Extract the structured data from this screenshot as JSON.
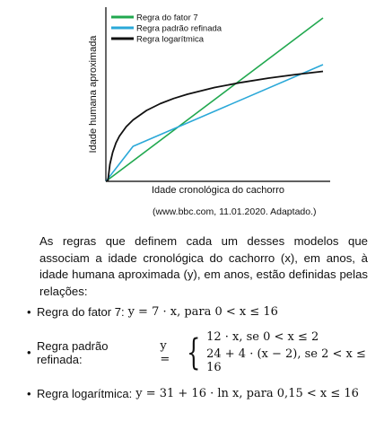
{
  "chart_data": {
    "type": "line",
    "title": "",
    "xlabel": "Idade cronológica do cachorro",
    "ylabel": "Idade humana aproximada",
    "xlim": [
      0,
      16
    ],
    "ylim": [
      0,
      112
    ],
    "grid": false,
    "legend_position": "top-left",
    "series": [
      {
        "name": "Regra do fator 7",
        "color": "#21a84f",
        "x": [
          0,
          16
        ],
        "y": [
          0,
          112
        ]
      },
      {
        "name": "Regra padrão refinada",
        "color": "#2aa8d8",
        "x": [
          0,
          2,
          16
        ],
        "y": [
          0,
          24,
          80
        ]
      },
      {
        "name": "Regra logarítmica",
        "color": "#111111",
        "x": [
          0.15,
          0.3,
          0.5,
          0.75,
          1,
          1.5,
          2,
          3,
          4,
          5,
          6,
          8,
          10,
          12,
          14,
          16
        ],
        "y": [
          0.6,
          11.7,
          19.9,
          26.4,
          31,
          37.5,
          42.1,
          48.6,
          53.2,
          56.8,
          59.7,
          64.3,
          67.8,
          70.8,
          73.2,
          75.4
        ]
      }
    ]
  },
  "source": "(www.bbc.com, 11.01.2020. Adaptado.)",
  "paragraph": "As regras que definem cada um desses modelos que associam a idade cronológica do cachorro (x), em anos, à idade humana aproximada (y), em anos, estão definidas pelas relações:",
  "rules": {
    "bullet": "•",
    "fator7_label": "Regra do fator 7:",
    "fator7_formula": "y = 7 · x, para 0 < x ≤ 16",
    "refinada_label": "Regra padrão refinada:",
    "refinada_lhs": "y =",
    "refinada_case1": "12 · x, se 0 < x ≤ 2",
    "refinada_case2": "24 + 4 · (x − 2), se 2 < x ≤ 16",
    "log_label": "Regra logarítmica:",
    "log_formula": "y = 31 + 16 · ln x, para 0,15 < x ≤ 16"
  }
}
